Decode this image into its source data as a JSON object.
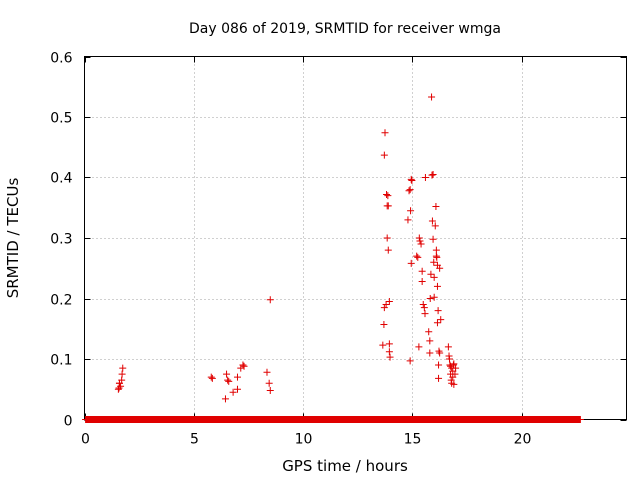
{
  "chart_data": {
    "type": "scatter",
    "title": "Day 086 of 2019, SRMTID for receiver wmga",
    "xlabel": "GPS time / hours",
    "ylabel": "SRMTID / TECUs",
    "xlim": [
      0,
      24.8
    ],
    "ylim": [
      0,
      0.6
    ],
    "xticks": [
      0,
      5,
      10,
      15,
      20
    ],
    "yticks": [
      0,
      0.1,
      0.2,
      0.3,
      0.4,
      0.5,
      0.6
    ],
    "xtick_labels": [
      "0",
      "5",
      "10",
      "15",
      "20"
    ],
    "ytick_labels": [
      "0",
      "0.1",
      "0.2",
      "0.3",
      "0.4",
      "0.5",
      "0.6"
    ],
    "grid": true,
    "marker": "+",
    "color": "#e00000",
    "baseline": {
      "y": 0,
      "x_start": 0.05,
      "x_end": 22.7,
      "step": 0.02
    },
    "series": [
      {
        "name": "SRMTID",
        "points": [
          [
            1.55,
            0.05
          ],
          [
            1.6,
            0.06
          ],
          [
            1.65,
            0.055
          ],
          [
            1.7,
            0.065
          ],
          [
            1.72,
            0.075
          ],
          [
            1.75,
            0.085
          ],
          [
            1.6,
            0.06
          ],
          [
            1.58,
            0.052
          ],
          [
            5.8,
            0.07
          ],
          [
            5.85,
            0.068
          ],
          [
            6.45,
            0.034
          ],
          [
            6.5,
            0.075
          ],
          [
            6.55,
            0.065
          ],
          [
            6.6,
            0.063
          ],
          [
            6.8,
            0.045
          ],
          [
            7.0,
            0.05
          ],
          [
            7.0,
            0.07
          ],
          [
            7.15,
            0.085
          ],
          [
            7.25,
            0.09
          ],
          [
            7.3,
            0.088
          ],
          [
            8.35,
            0.078
          ],
          [
            8.45,
            0.06
          ],
          [
            8.5,
            0.048
          ],
          [
            8.5,
            0.198
          ],
          [
            13.65,
            0.123
          ],
          [
            13.7,
            0.157
          ],
          [
            13.72,
            0.185
          ],
          [
            13.72,
            0.437
          ],
          [
            13.75,
            0.474
          ],
          [
            13.8,
            0.19
          ],
          [
            13.82,
            0.372
          ],
          [
            13.85,
            0.353
          ],
          [
            13.85,
            0.3
          ],
          [
            13.88,
            0.37
          ],
          [
            13.9,
            0.28
          ],
          [
            13.9,
            0.353
          ],
          [
            13.95,
            0.195
          ],
          [
            13.95,
            0.125
          ],
          [
            13.95,
            0.112
          ],
          [
            13.98,
            0.103
          ],
          [
            14.8,
            0.33
          ],
          [
            14.85,
            0.378
          ],
          [
            14.9,
            0.38
          ],
          [
            14.92,
            0.345
          ],
          [
            14.95,
            0.397
          ],
          [
            14.98,
            0.395
          ],
          [
            14.95,
            0.258
          ],
          [
            14.9,
            0.097
          ],
          [
            15.2,
            0.27
          ],
          [
            15.25,
            0.268
          ],
          [
            15.3,
            0.12
          ],
          [
            15.32,
            0.3
          ],
          [
            15.35,
            0.295
          ],
          [
            15.4,
            0.29
          ],
          [
            15.45,
            0.228
          ],
          [
            15.45,
            0.245
          ],
          [
            15.5,
            0.19
          ],
          [
            15.55,
            0.185
          ],
          [
            15.58,
            0.175
          ],
          [
            15.6,
            0.4
          ],
          [
            15.75,
            0.145
          ],
          [
            15.8,
            0.13
          ],
          [
            15.8,
            0.11
          ],
          [
            15.82,
            0.2
          ],
          [
            15.85,
            0.24
          ],
          [
            15.88,
            0.533
          ],
          [
            15.9,
            0.404
          ],
          [
            15.92,
            0.328
          ],
          [
            15.95,
            0.405
          ],
          [
            15.95,
            0.298
          ],
          [
            15.98,
            0.26
          ],
          [
            16.0,
            0.235
          ],
          [
            16.0,
            0.202
          ],
          [
            16.05,
            0.32
          ],
          [
            16.08,
            0.352
          ],
          [
            16.1,
            0.28
          ],
          [
            16.1,
            0.27
          ],
          [
            16.12,
            0.268
          ],
          [
            16.15,
            0.22
          ],
          [
            16.15,
            0.16
          ],
          [
            16.18,
            0.18
          ],
          [
            16.2,
            0.09
          ],
          [
            16.2,
            0.068
          ],
          [
            16.22,
            0.113
          ],
          [
            16.25,
            0.11
          ],
          [
            16.3,
            0.165
          ],
          [
            16.25,
            0.25
          ],
          [
            16.15,
            0.255
          ],
          [
            16.65,
            0.12
          ],
          [
            16.68,
            0.105
          ],
          [
            16.7,
            0.1
          ],
          [
            16.72,
            0.09
          ],
          [
            16.75,
            0.075
          ],
          [
            16.75,
            0.088
          ],
          [
            16.8,
            0.085
          ],
          [
            16.78,
            0.065
          ],
          [
            16.8,
            0.06
          ],
          [
            16.85,
            0.08
          ],
          [
            16.85,
            0.07
          ],
          [
            16.88,
            0.09
          ],
          [
            16.9,
            0.058
          ],
          [
            16.95,
            0.075
          ],
          [
            16.98,
            0.085
          ],
          [
            16.9,
            0.092
          ]
        ]
      }
    ]
  }
}
